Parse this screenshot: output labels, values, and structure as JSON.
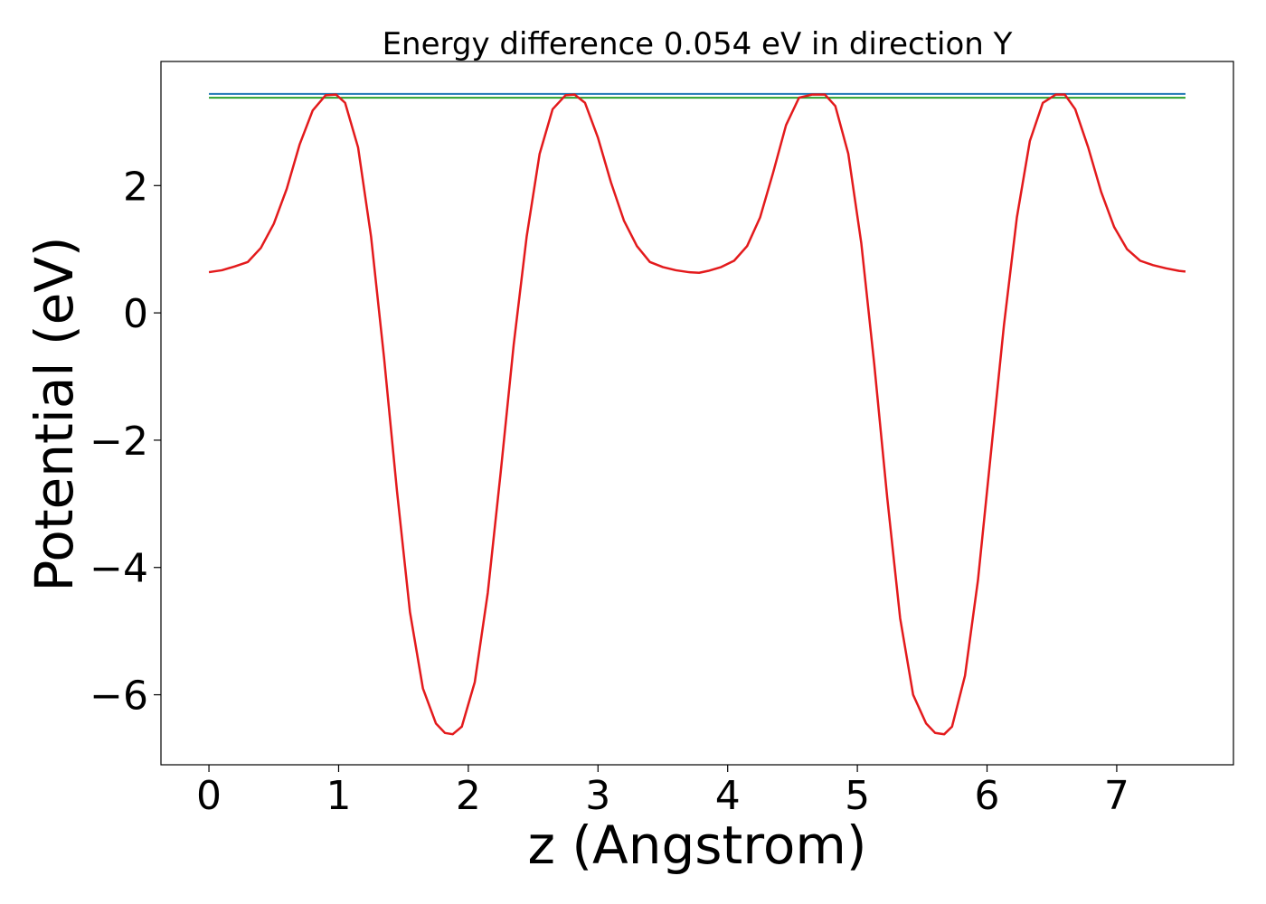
{
  "chart_data": {
    "type": "line",
    "title": "Energy difference 0.054 eV in direction Y",
    "xlabel": "z (Angstrom)",
    "ylabel": "Potential (eV)",
    "xlim": [
      -0.37,
      7.9
    ],
    "ylim": [
      -7.1,
      3.95
    ],
    "xticks": [
      0,
      1,
      2,
      3,
      4,
      5,
      6,
      7
    ],
    "xtick_labels": [
      "0",
      "1",
      "2",
      "3",
      "4",
      "5",
      "6",
      "7"
    ],
    "yticks": [
      -6,
      -4,
      -2,
      0,
      2
    ],
    "ytick_labels": [
      "−6",
      "−4",
      "−2",
      "0",
      "2"
    ],
    "grid": false,
    "series": [
      {
        "color": "#1f77b4",
        "x": [
          0,
          7.53
        ],
        "y": [
          3.44,
          3.44
        ]
      },
      {
        "color": "#2ca02c",
        "x": [
          0,
          7.53
        ],
        "y": [
          3.38,
          3.38
        ]
      },
      {
        "color": "#e31a1c",
        "x": [
          0,
          0.1,
          0.2,
          0.3,
          0.4,
          0.5,
          0.6,
          0.7,
          0.8,
          0.9,
          0.98,
          1.05,
          1.15,
          1.25,
          1.35,
          1.45,
          1.55,
          1.65,
          1.75,
          1.82,
          1.88,
          1.95,
          2.05,
          2.15,
          2.25,
          2.35,
          2.45,
          2.55,
          2.65,
          2.75,
          2.82,
          2.9,
          3.0,
          3.1,
          3.2,
          3.3,
          3.4,
          3.5,
          3.6,
          3.7,
          3.78,
          3.85,
          3.95,
          4.05,
          4.15,
          4.25,
          4.35,
          4.45,
          4.55,
          4.65,
          4.75,
          4.83,
          4.93,
          5.03,
          5.13,
          5.23,
          5.33,
          5.43,
          5.53,
          5.6,
          5.67,
          5.73,
          5.83,
          5.93,
          6.03,
          6.13,
          6.23,
          6.33,
          6.43,
          6.53,
          6.6,
          6.68,
          6.78,
          6.88,
          6.98,
          7.08,
          7.18,
          7.28,
          7.38,
          7.48,
          7.53
        ],
        "y": [
          0.64,
          0.67,
          0.73,
          0.8,
          1.02,
          1.4,
          1.95,
          2.65,
          3.18,
          3.42,
          3.43,
          3.3,
          2.6,
          1.2,
          -0.7,
          -2.8,
          -4.7,
          -5.9,
          -6.45,
          -6.6,
          -6.62,
          -6.5,
          -5.8,
          -4.4,
          -2.5,
          -0.5,
          1.2,
          2.5,
          3.2,
          3.42,
          3.43,
          3.3,
          2.75,
          2.05,
          1.45,
          1.05,
          0.8,
          0.72,
          0.67,
          0.64,
          0.63,
          0.66,
          0.72,
          0.82,
          1.05,
          1.5,
          2.2,
          2.95,
          3.38,
          3.43,
          3.43,
          3.25,
          2.5,
          1.1,
          -0.8,
          -2.9,
          -4.8,
          -6.0,
          -6.45,
          -6.6,
          -6.62,
          -6.5,
          -5.7,
          -4.2,
          -2.2,
          -0.2,
          1.5,
          2.7,
          3.3,
          3.43,
          3.43,
          3.2,
          2.6,
          1.9,
          1.35,
          1.0,
          0.82,
          0.75,
          0.7,
          0.66,
          0.65
        ]
      }
    ]
  }
}
